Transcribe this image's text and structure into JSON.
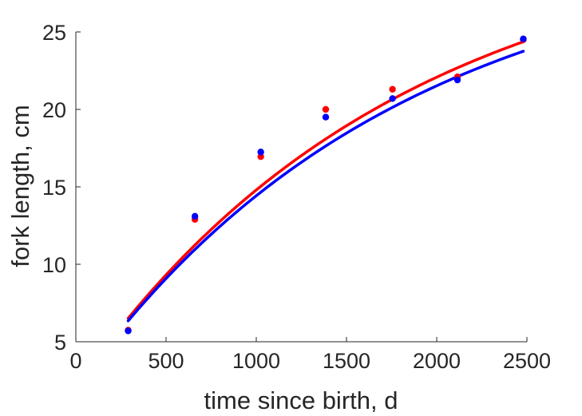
{
  "chart_data": {
    "type": "scatter",
    "xlabel": "time since birth, d",
    "ylabel": "fork length, cm",
    "xlim": [
      0,
      2500
    ],
    "ylim": [
      5,
      25
    ],
    "xticks": [
      0,
      500,
      1000,
      1500,
      2000,
      2500
    ],
    "yticks": [
      5,
      10,
      15,
      20,
      25
    ],
    "grid": false,
    "legend": "none",
    "series": [
      {
        "color": "#ff0000",
        "points": [
          {
            "x": 290,
            "y": 5.75
          },
          {
            "x": 660,
            "y": 12.9
          },
          {
            "x": 1025,
            "y": 16.95
          },
          {
            "x": 1385,
            "y": 20.0
          },
          {
            "x": 1755,
            "y": 21.3
          },
          {
            "x": 2115,
            "y": 22.1
          },
          {
            "x": 2480,
            "y": 24.5
          }
        ],
        "fit": {
          "linf": 31.8,
          "k": 0.000559,
          "t0": -120
        }
      },
      {
        "color": "#0000ff",
        "points": [
          {
            "x": 290,
            "y": 5.7
          },
          {
            "x": 660,
            "y": 13.1
          },
          {
            "x": 1025,
            "y": 17.25
          },
          {
            "x": 1385,
            "y": 19.5
          },
          {
            "x": 1755,
            "y": 20.7
          },
          {
            "x": 2115,
            "y": 21.9
          },
          {
            "x": 2480,
            "y": 24.55
          }
        ],
        "fit": {
          "linf": 31.0,
          "k": 0.000559,
          "t0": -120
        }
      }
    ]
  }
}
